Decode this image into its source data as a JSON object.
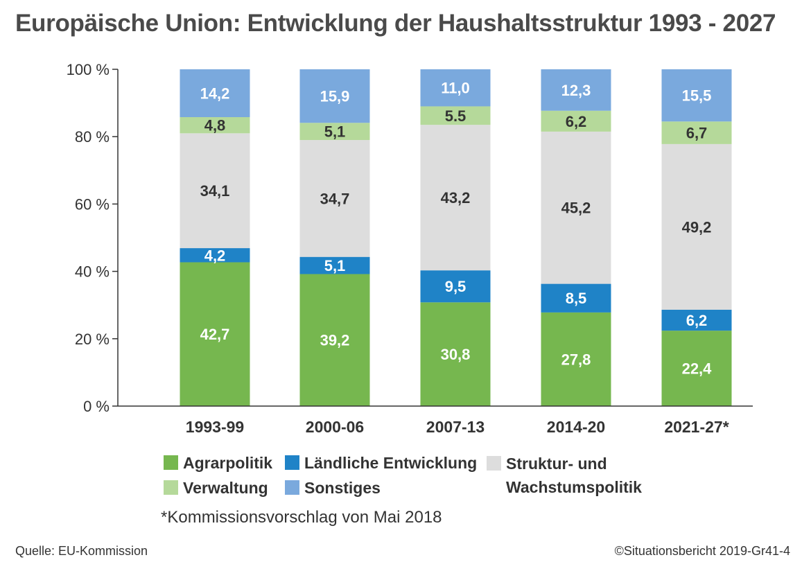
{
  "title": "Europäische Union: Entwicklung der Haushaltsstruktur 1993 - 2027",
  "chart_data": {
    "type": "bar",
    "stacked": true,
    "categories": [
      "1993-99",
      "2000-06",
      "2007-13",
      "2014-20",
      "2021-27*"
    ],
    "ylim": [
      0,
      100
    ],
    "yticks": [
      0,
      20,
      40,
      60,
      80,
      100
    ],
    "ytick_labels": [
      "0 %",
      "20 %",
      "40 %",
      "60 %",
      "80 %",
      "100 %"
    ],
    "series": [
      {
        "name": "Agrarpolitik",
        "color": "#76b74f",
        "label_color": "#ffffff",
        "values": [
          42.7,
          39.2,
          30.8,
          27.8,
          22.4
        ],
        "labels": [
          "42,7",
          "39,2",
          "30,8",
          "27,8",
          "22,4"
        ]
      },
      {
        "name": "Ländliche Entwicklung",
        "color": "#1f83c7",
        "label_color": "#ffffff",
        "values": [
          4.2,
          5.1,
          9.5,
          8.5,
          6.2
        ],
        "labels": [
          "4,2",
          "5,1",
          "9,5",
          "8,5",
          "6,2"
        ]
      },
      {
        "name": "Struktur- und Wachstumspolitik",
        "color": "#dddddd",
        "label_color": "#333333",
        "values": [
          34.1,
          34.7,
          43.2,
          45.2,
          49.2
        ],
        "labels": [
          "34,1",
          "34,7",
          "43,2",
          "45,2",
          "49,2"
        ]
      },
      {
        "name": "Verwaltung",
        "color": "#b5d99a",
        "label_color": "#333333",
        "values": [
          4.8,
          5.1,
          5.5,
          6.2,
          6.7
        ],
        "labels": [
          "4,8",
          "5,1",
          "5.5",
          "6,2",
          "6,7"
        ]
      },
      {
        "name": "Sonstiges",
        "color": "#7aa9dd",
        "label_color": "#ffffff",
        "values": [
          14.2,
          15.9,
          11.0,
          12.3,
          15.5
        ],
        "labels": [
          "14,2",
          "15,9",
          "11,0",
          "12,3",
          "15,5"
        ]
      }
    ],
    "legend": {
      "agrar": "Agrarpolitik",
      "laendlich": "Ländliche Entwicklung",
      "struktur_line1": "Struktur- und",
      "struktur_line2": "Wachstumspolitik",
      "verwaltung": "Verwaltung",
      "sonstiges": "Sonstiges"
    },
    "legend_placement": "bottom",
    "grid": false
  },
  "footnote": "*Kommissionsvorschlag von Mai 2018",
  "source": "Quelle: EU-Kommission",
  "credit": "©Situationsbericht 2019-Gr41-4"
}
